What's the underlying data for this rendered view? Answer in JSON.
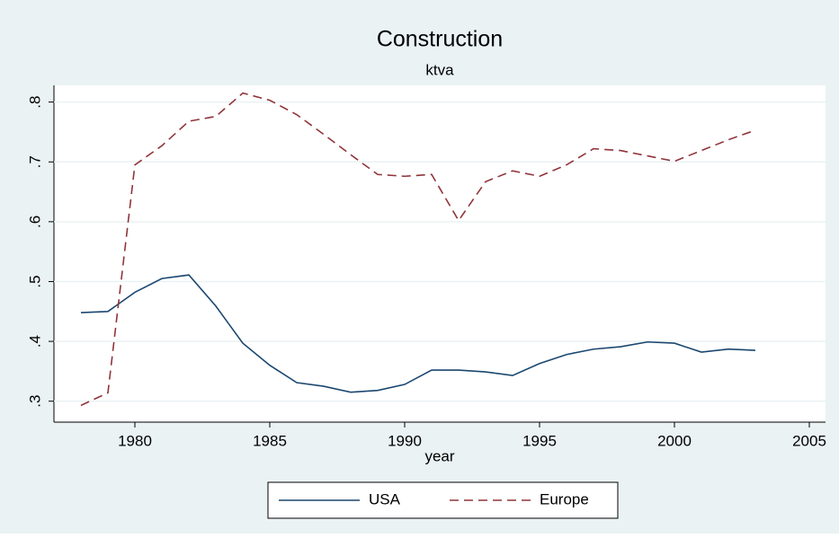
{
  "chart_data": {
    "type": "line",
    "title": "Construction",
    "subtitle": "ktva",
    "x_label": "year",
    "x": [
      1978,
      1979,
      1980,
      1981,
      1982,
      1983,
      1984,
      1985,
      1986,
      1987,
      1988,
      1989,
      1990,
      1991,
      1992,
      1993,
      1994,
      1995,
      1996,
      1997,
      1998,
      1999,
      2000,
      2001,
      2002,
      2003
    ],
    "series": [
      {
        "name": "USA",
        "color": "#1a476f",
        "dash": "solid",
        "values": [
          0.448,
          0.45,
          0.482,
          0.505,
          0.511,
          0.459,
          0.397,
          0.36,
          0.331,
          0.325,
          0.315,
          0.318,
          0.328,
          0.352,
          0.352,
          0.349,
          0.343,
          0.363,
          0.378,
          0.387,
          0.391,
          0.399,
          0.397,
          0.382,
          0.387,
          0.385
        ]
      },
      {
        "name": "Europe",
        "color": "#90353b",
        "dash": "dashed",
        "values": [
          0.293,
          0.314,
          0.695,
          0.727,
          0.768,
          0.776,
          0.815,
          0.803,
          0.779,
          0.746,
          0.712,
          0.679,
          0.676,
          0.679,
          0.602,
          0.667,
          0.685,
          0.676,
          0.695,
          0.722,
          0.719,
          0.71,
          0.701,
          0.719,
          0.737,
          0.753
        ]
      }
    ],
    "xlim": [
      1977,
      2005.6
    ],
    "xticks": [
      1980,
      1985,
      1990,
      1995,
      2000,
      2005
    ],
    "ylim": [
      0.265,
      0.828
    ],
    "yticks": [
      {
        "value": 0.3,
        "label": ".3"
      },
      {
        "value": 0.4,
        "label": ".4"
      },
      {
        "value": 0.5,
        "label": ".5"
      },
      {
        "value": 0.6,
        "label": ".6"
      },
      {
        "value": 0.7,
        "label": ".7"
      },
      {
        "value": 0.8,
        "label": ".8"
      }
    ],
    "grid": true,
    "legend": "bottom"
  }
}
